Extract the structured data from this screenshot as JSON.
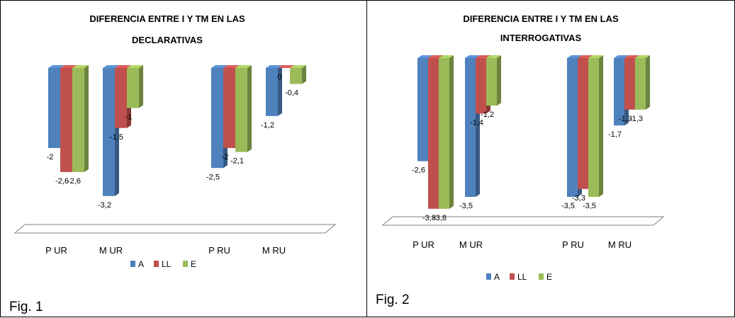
{
  "chart_data": [
    {
      "type": "bar",
      "title": "DIFERENCIA ENTRE I Y TM EN LAS DECLARATIVAS",
      "title_lines": [
        "DIFERENCIA ENTRE I Y TM EN LAS",
        "DECLARATIVAS"
      ],
      "categories": [
        "P UR",
        "M UR",
        "P RU",
        "M RU"
      ],
      "series": [
        {
          "name": "A",
          "values": [
            -2,
            -3.2,
            -2.5,
            -1.2
          ],
          "labels": [
            "-2",
            "-3,2",
            "-2,5",
            "-1,2"
          ]
        },
        {
          "name": "LL",
          "values": [
            -2.6,
            -1.5,
            -2,
            0
          ],
          "labels": [
            "-2,6",
            "-1,5",
            "-2",
            "0"
          ]
        },
        {
          "name": "E",
          "values": [
            -2.6,
            -1,
            -2.1,
            -0.4
          ],
          "labels": [
            "-2,6",
            "-1",
            "-2,1",
            "-0,4"
          ]
        }
      ],
      "grid": false,
      "legend_position": "bottom",
      "caption": "Fig. 1"
    },
    {
      "type": "bar",
      "title": "DIFERENCIA ENTRE I Y TM EN LAS INTERROGATIVAS",
      "title_lines": [
        "DIFERENCIA ENTRE I Y TM EN LAS",
        "INTERROGATIVAS"
      ],
      "categories": [
        "P UR",
        "M UR",
        "P RU",
        "M RU"
      ],
      "series": [
        {
          "name": "A",
          "values": [
            -2.6,
            -3.5,
            -3.5,
            -1.7
          ],
          "labels": [
            "-2,6",
            "-3,5",
            "-3,5",
            "-1,7"
          ]
        },
        {
          "name": "LL",
          "values": [
            -3.8,
            -1.4,
            -3.3,
            -1.3
          ],
          "labels": [
            "-3,8",
            "-1,4",
            "-3,3",
            "-1,3"
          ]
        },
        {
          "name": "E",
          "values": [
            -3.8,
            -1.2,
            -3.5,
            -1.3
          ],
          "labels": [
            "-3,8",
            "-1,2",
            "-3,5",
            "-1,3"
          ]
        }
      ],
      "grid": false,
      "legend_position": "bottom",
      "caption": "Fig. 2"
    }
  ],
  "colors": {
    "A": "#4f81bd",
    "LL": "#c0504d",
    "E": "#9bbb59"
  }
}
